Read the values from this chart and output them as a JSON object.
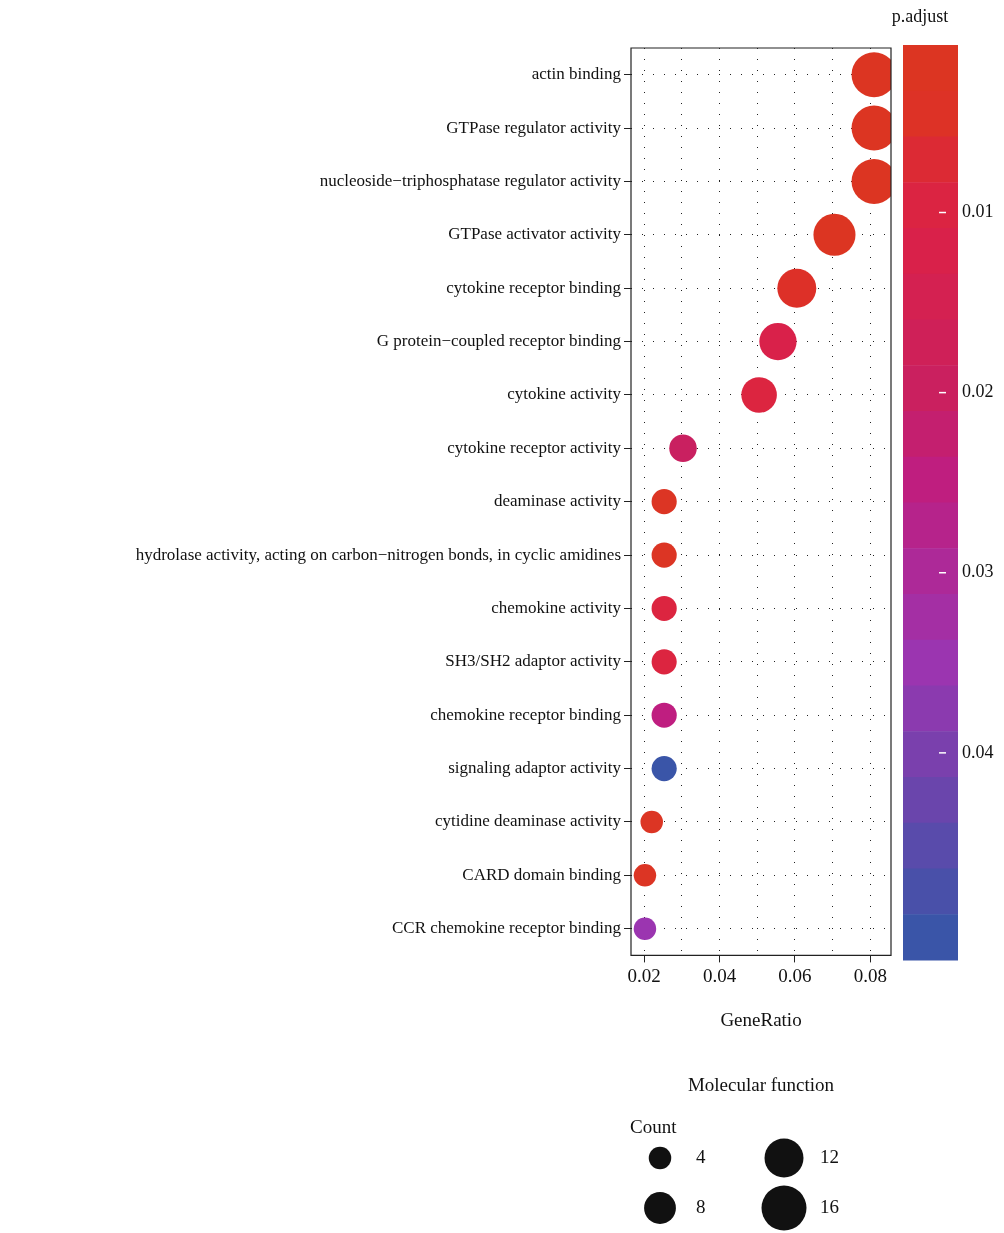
{
  "chart_data": {
    "type": "bubble",
    "orientation": "horizontal",
    "xlabel": "GeneRatio",
    "clabel": "p.adjust",
    "legend_title": "Count",
    "categories": [
      "actin binding",
      "GTPase regulator activity",
      "nucleoside−triphosphatase regulator activity",
      "GTPase activator activity",
      "cytokine receptor binding",
      "G protein−coupled receptor binding",
      "cytokine activity",
      "cytokine receptor activity",
      "deaminase activity",
      "hydrolase activity, acting on carbon−nitrogen bonds, in cyclic amidines",
      "chemokine activity",
      "SH3/SH2 adaptor activity",
      "chemokine receptor binding",
      "signaling adaptor activity",
      "cytidine deaminase activity",
      "CARD domain binding",
      "CCR chemokine receptor binding"
    ],
    "values": [
      0.081,
      0.081,
      0.081,
      0.0705,
      0.0605,
      0.0555,
      0.0505,
      0.0303,
      0.0253,
      0.0253,
      0.0253,
      0.0253,
      0.0253,
      0.0253,
      0.022,
      0.0202,
      0.0202
    ],
    "sizes": [
      16,
      16,
      16,
      14,
      12,
      11,
      10,
      6,
      5,
      5,
      5,
      5,
      5,
      5,
      4,
      4,
      4
    ],
    "size_legend": [
      4,
      8,
      12,
      16
    ],
    "cvalues": [
      0.002,
      0.002,
      0.002,
      0.003,
      0.005,
      0.012,
      0.009,
      0.02,
      0.004,
      0.004,
      0.009,
      0.009,
      0.025,
      0.05,
      0.004,
      0.004,
      0.035
    ],
    "colors": [
      "#dc3522",
      "#dc3522",
      "#dc3522",
      "#dc3522",
      "#dd3028",
      "#d9214a",
      "#dc2540",
      "#c92060",
      "#dc3524",
      "#dc3524",
      "#dc2540",
      "#dc2540",
      "#bf1e80",
      "#3a55a8",
      "#dc3524",
      "#dc3524",
      "#9b35b0"
    ],
    "clim": [
      0.0007,
      0.0515
    ],
    "cticks": [
      0.01,
      0.02,
      0.03,
      0.04
    ],
    "xlim": [
      0.0165,
      0.0855
    ],
    "xticks": [
      0.02,
      {
        "value": 0.03,
        "label": null
      },
      0.04,
      {
        "value": 0.05,
        "label": null
      },
      0.06,
      {
        "value": 0.07,
        "label": null
      },
      0.08
    ],
    "grid": true,
    "annotations": [
      "Molecular function"
    ]
  }
}
